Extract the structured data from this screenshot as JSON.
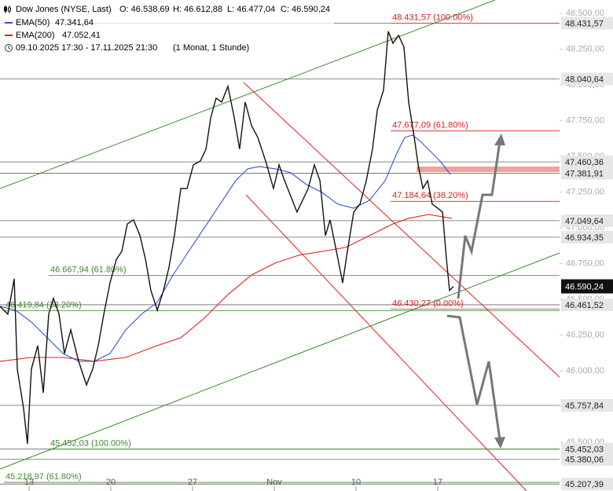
{
  "chart_data": {
    "type": "line",
    "header": {
      "ohlc": [
        "O: 46.538,69",
        "H: 46.612,88",
        "L: 46.477,04",
        "C: 46.590,24"
      ],
      "range": "09.10.2025 17:30 - 17.11.2025 21:30",
      "period": "(1 Monat, 1 Stunde)"
    },
    "xlim": [
      -1.78,
      32.45
    ],
    "xticks": [
      {
        "value": 0,
        "label": "13"
      },
      {
        "value": 5,
        "label": "20"
      },
      {
        "value": 10,
        "label": "27"
      },
      {
        "value": 15,
        "label": "Nov"
      },
      {
        "value": 20,
        "label": "10"
      },
      {
        "value": 25,
        "label": "17"
      }
    ],
    "ylim": [
      45159,
      48593
    ],
    "yticks": [
      {
        "value": 48500,
        "label": "48.500,00"
      },
      {
        "value": 48250,
        "label": "48.250,00"
      },
      {
        "value": 48000,
        "label": "48.000,00"
      },
      {
        "value": 47750,
        "label": "47.750,00"
      },
      {
        "value": 47500,
        "label": "47.500,00"
      },
      {
        "value": 47250,
        "label": "47.250,00"
      },
      {
        "value": 47000,
        "label": "47.000,00"
      },
      {
        "value": 46750,
        "label": "46.750,00"
      },
      {
        "value": 46500,
        "label": "46.500,00"
      },
      {
        "value": 46250,
        "label": "46.250,00"
      },
      {
        "value": 46000,
        "label": "46.000,00"
      },
      {
        "value": 45750,
        "label": "45.750,00"
      },
      {
        "value": 45500,
        "label": "45.500,00"
      }
    ],
    "series": [
      {
        "name": "Dow Jones (NYSE, Last)",
        "color": "#111111",
        "x": [
          -1.78,
          -1.3,
          -0.91,
          -0.72,
          -0.34,
          -0.1,
          0.14,
          0.53,
          0.87,
          1.2,
          1.49,
          1.83,
          2.16,
          2.55,
          3.03,
          3.51,
          3.89,
          4.23,
          4.57,
          4.95,
          5.34,
          5.67,
          6.01,
          6.39,
          6.78,
          7.12,
          7.45,
          7.84,
          8.22,
          8.56,
          8.89,
          9.28,
          9.66,
          10.05,
          10.48,
          10.82,
          11.11,
          11.44,
          11.78,
          12.16,
          12.55,
          12.88,
          13.22,
          13.61,
          13.99,
          14.47,
          14.95,
          15.29,
          15.63,
          16.01,
          16.39,
          16.73,
          17.07,
          17.45,
          17.79,
          18.13,
          18.41,
          18.8,
          19.18,
          19.47,
          19.86,
          20.24,
          20.63,
          21.01,
          21.3,
          21.68,
          21.97,
          22.26,
          22.6,
          22.93,
          23.22,
          23.56,
          23.8,
          24.09,
          24.38,
          24.66,
          25.0,
          25.29,
          25.53,
          25.72,
          25.96
        ],
        "values": [
          46450,
          46396,
          46643,
          46011,
          45736,
          45489,
          46011,
          46176,
          45846,
          46396,
          46506,
          46396,
          46121,
          46286,
          46066,
          45901,
          46011,
          46176,
          46396,
          46615,
          46780,
          46835,
          47027,
          47055,
          46945,
          46780,
          46561,
          46423,
          46561,
          46725,
          46945,
          47275,
          47275,
          47440,
          47467,
          47550,
          47769,
          47907,
          47879,
          47989,
          47769,
          47550,
          47879,
          47714,
          47632,
          47467,
          47275,
          47440,
          47330,
          47220,
          47110,
          47192,
          47275,
          47440,
          47330,
          46945,
          47055,
          46835,
          46615,
          46835,
          47110,
          47165,
          47330,
          47550,
          47824,
          47962,
          48374,
          48291,
          48346,
          48264,
          47879,
          47632,
          47440,
          47275,
          47330,
          47165,
          47137,
          47110,
          46780,
          46561,
          46590
        ]
      },
      {
        "name": "EMA(50)",
        "color": "#2e55d6",
        "last_label": "47.341,64",
        "x": [
          -1.78,
          -0.82,
          0.14,
          1.11,
          2.07,
          3.03,
          3.99,
          4.95,
          5.91,
          6.88,
          7.84,
          8.8,
          9.76,
          10.72,
          11.68,
          12.64,
          13.37,
          14.09,
          15.05,
          16.01,
          16.97,
          17.93,
          18.89,
          19.86,
          20.82,
          21.78,
          22.5,
          22.98,
          23.46,
          23.94,
          24.42,
          25.14,
          25.77
        ],
        "values": [
          46451,
          46423,
          46341,
          46231,
          46121,
          46066,
          46066,
          46121,
          46286,
          46396,
          46478,
          46670,
          46835,
          47000,
          47165,
          47330,
          47412,
          47429,
          47412,
          47385,
          47302,
          47247,
          47165,
          47137,
          47192,
          47330,
          47522,
          47632,
          47648,
          47604,
          47549,
          47467,
          47374
        ]
      },
      {
        "name": "EMA(200)",
        "color": "#e0201e",
        "last_label": "47.052,41",
        "x": [
          -1.78,
          0.14,
          2.07,
          3.99,
          5.91,
          7.84,
          9.28,
          10.72,
          12.16,
          13.61,
          15.05,
          16.49,
          17.93,
          19.38,
          20.82,
          22.26,
          23.22,
          24.42,
          25.87
        ],
        "values": [
          46066,
          46093,
          46093,
          46066,
          46093,
          46176,
          46231,
          46368,
          46533,
          46670,
          46753,
          46808,
          46835,
          46863,
          46945,
          47027,
          47066,
          47093,
          47066
        ]
      }
    ],
    "levels": [
      {
        "value": 48431.57,
        "label": "48.431,57"
      },
      {
        "value": 48040.64,
        "label": "48.040,64"
      },
      {
        "value": 47460.36,
        "label": "47.460,36"
      },
      {
        "value": 47381.91,
        "label": "47.381,91"
      },
      {
        "value": 47049.64,
        "label": "47.049,64"
      },
      {
        "value": 46934.35,
        "label": "46.934,35"
      },
      {
        "value": 46461.52,
        "label": "46.461,52"
      },
      {
        "value": 45757.84,
        "label": "45.757,84"
      },
      {
        "value": 45452.03,
        "label": "45.452,03"
      },
      {
        "value": 45380.06,
        "label": "45.380,06"
      },
      {
        "value": 45207.39,
        "label": "45.207,39"
      }
    ],
    "current_price": {
      "value": 46590.24,
      "label": "46.590,24"
    },
    "annotations": [
      {
        "text": "48.431,57 (100.00%)",
        "value": 48431.57,
        "x": 22.12,
        "color": "#d42020"
      },
      {
        "text": "47.677,09 (61.80%)",
        "value": 47677.09,
        "x": 22.12,
        "color": "#d42020"
      },
      {
        "text": "47.184,64 (38.20%)",
        "value": 47184.64,
        "x": 22.12,
        "color": "#d42020"
      },
      {
        "text": "46.430,27 (0.00%)",
        "value": 46430.27,
        "x": 22.12,
        "color": "#d42020"
      },
      {
        "text": "46.667,94 (61.80%)",
        "value": 46667.94,
        "x": 1.2,
        "color": "#3a8a2a"
      },
      {
        "text": "46.419,84 (38.20%)",
        "value": 46419.84,
        "x": -1.54,
        "color": "#3a8a2a"
      },
      {
        "text": "45.452,03 (100.00%)",
        "value": 45452.03,
        "x": 1.2,
        "color": "#3a8a2a"
      },
      {
        "text": "45.218,97 (61.80%)",
        "value": 45218.97,
        "x": -1.54,
        "color": "#3a8a2a"
      }
    ]
  }
}
